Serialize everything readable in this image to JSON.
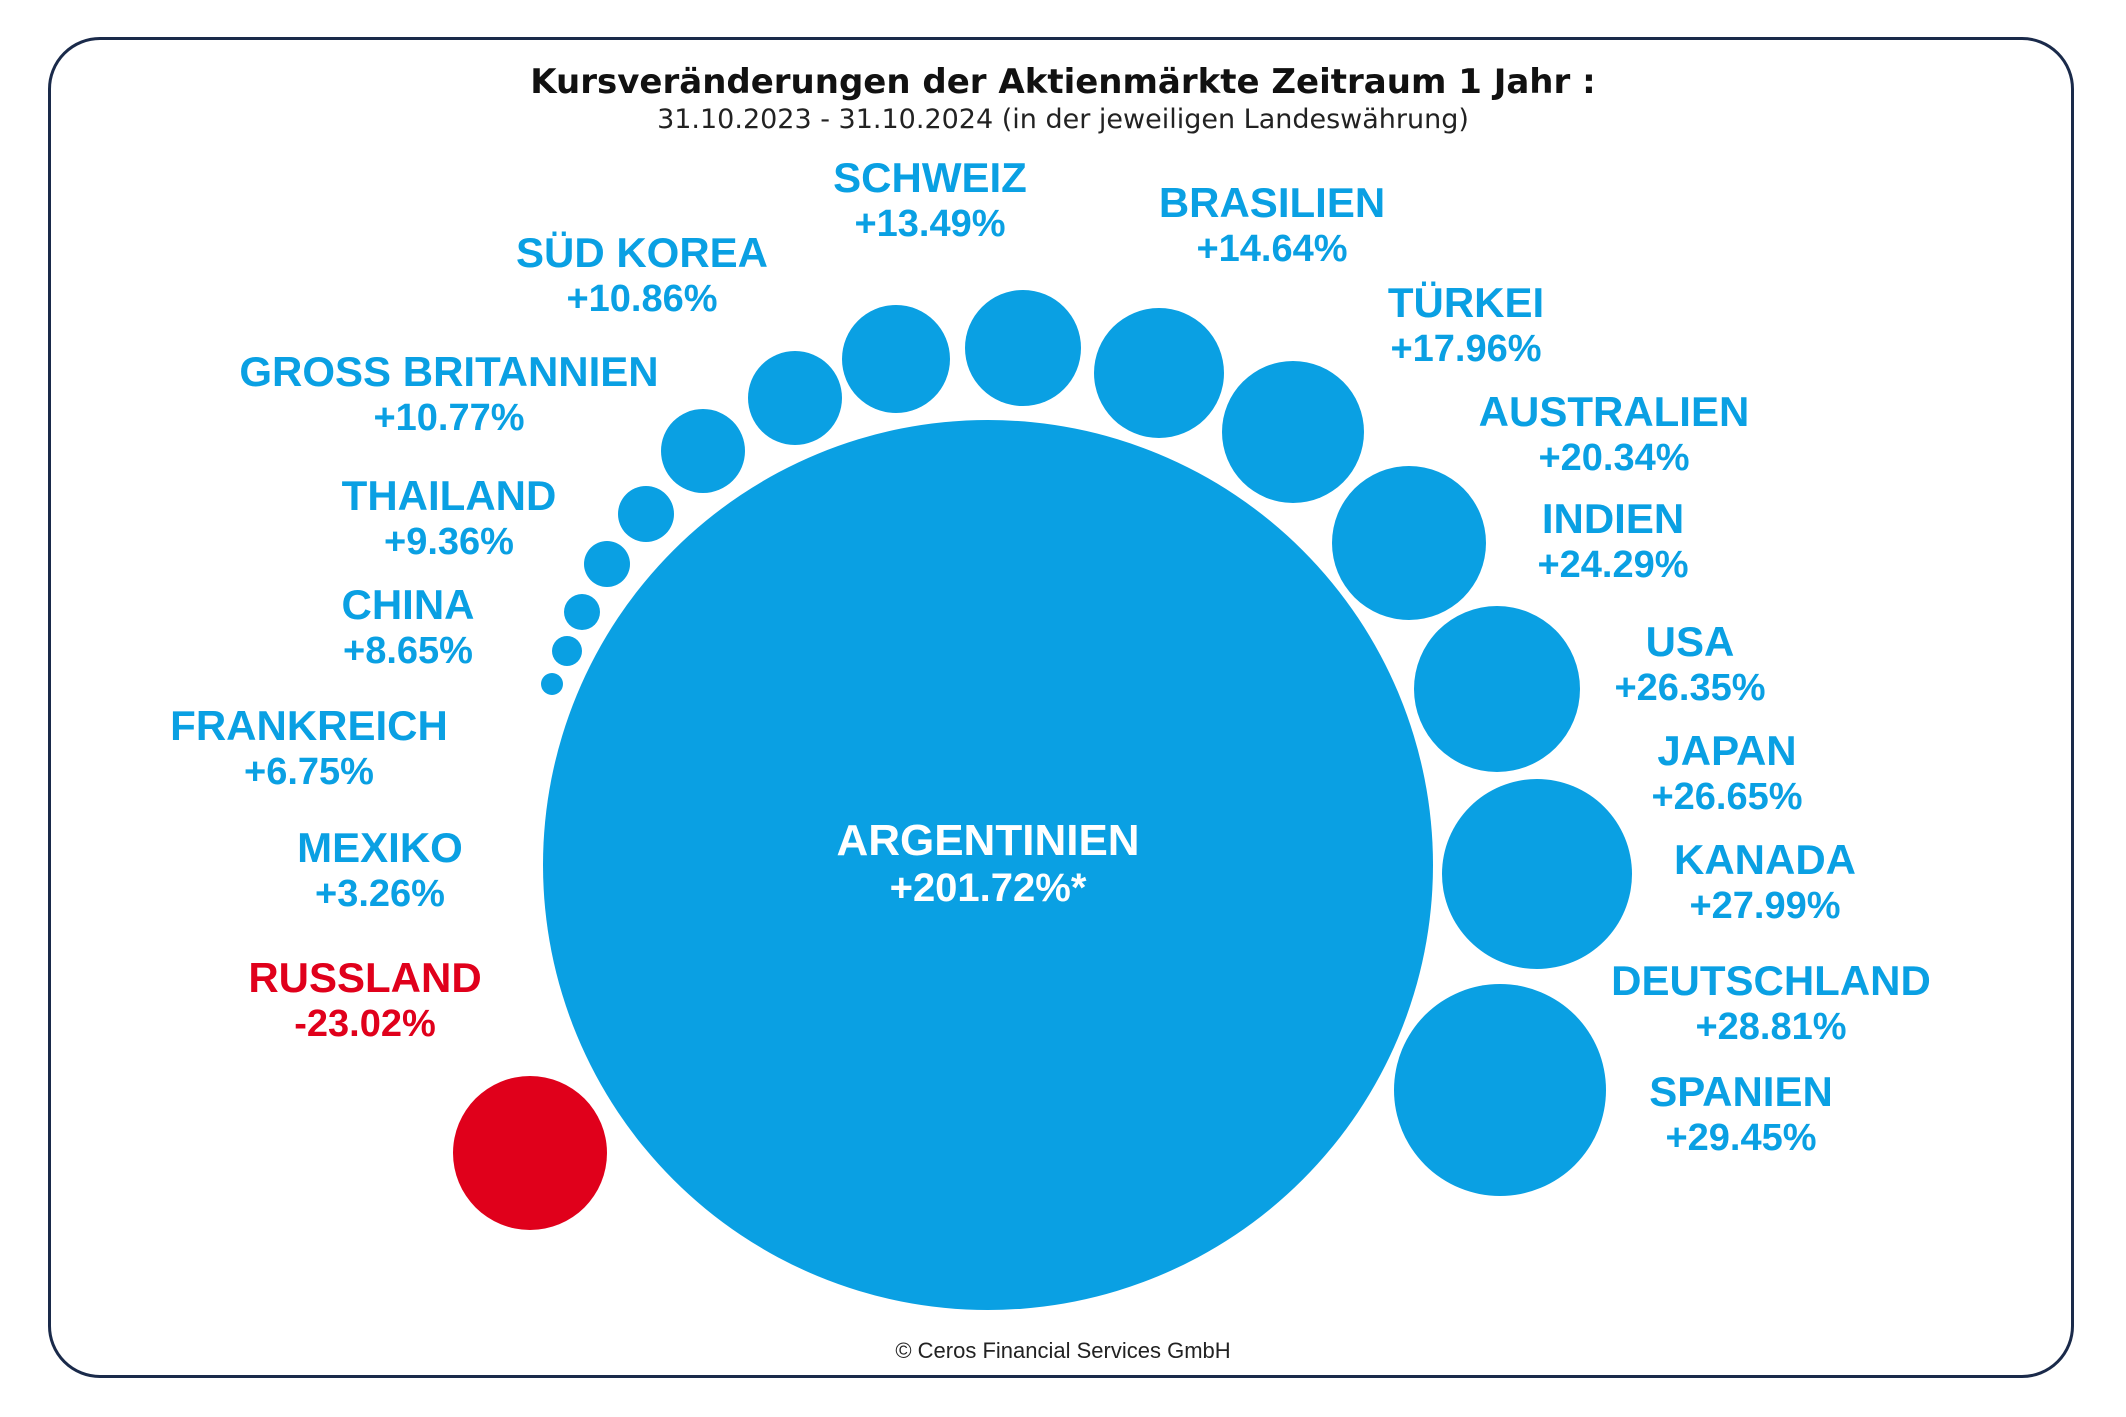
{
  "title": "Kursveränderungen der Aktienmärkte Zeitraum 1  Jahr :",
  "subtitle": "31.10.2023 - 31.10.2024 (in der jeweiligen Landeswährung)",
  "credit": "© Ceros Financial Services GmbH",
  "colors": {
    "positive": "#0aa0e3",
    "negative": "#e0001b",
    "center_text": "#ffffff"
  },
  "chart_data": {
    "type": "bubble",
    "unit": "%",
    "countries": [
      {
        "name": "RUSSLAND",
        "label": "-23.02%",
        "value": -23.02
      },
      {
        "name": "MEXIKO",
        "label": "+3.26%",
        "value": 3.26
      },
      {
        "name": "FRANKREICH",
        "label": "+6.75%",
        "value": 6.75
      },
      {
        "name": "CHINA",
        "label": "+8.65%",
        "value": 8.65
      },
      {
        "name": "THAILAND",
        "label": "+9.36%",
        "value": 9.36
      },
      {
        "name": "GROSS BRITANNIEN",
        "label": "+10.77%",
        "value": 10.77
      },
      {
        "name": "SÜD KOREA",
        "label": "+10.86%",
        "value": 10.86
      },
      {
        "name": "SCHWEIZ",
        "label": "+13.49%",
        "value": 13.49
      },
      {
        "name": "BRASILIEN",
        "label": "+14.64%",
        "value": 14.64
      },
      {
        "name": "TÜRKEI",
        "label": "+17.96%",
        "value": 17.96
      },
      {
        "name": "AUSTRALIEN",
        "label": "+20.34%",
        "value": 20.34
      },
      {
        "name": "INDIEN",
        "label": "+24.29%",
        "value": 24.29
      },
      {
        "name": "USA",
        "label": "+26.35%",
        "value": 26.35
      },
      {
        "name": "JAPAN",
        "label": "+26.65%",
        "value": 26.65
      },
      {
        "name": "KANADA",
        "label": "+27.99%",
        "value": 27.99
      },
      {
        "name": "DEUTSCHLAND",
        "label": "+28.81%",
        "value": 28.81
      },
      {
        "name": "SPANIEN",
        "label": "+29.45%",
        "value": 29.45
      },
      {
        "name": "ARGENTINIEN",
        "label": "+201.72%*",
        "value": 201.72
      }
    ]
  }
}
